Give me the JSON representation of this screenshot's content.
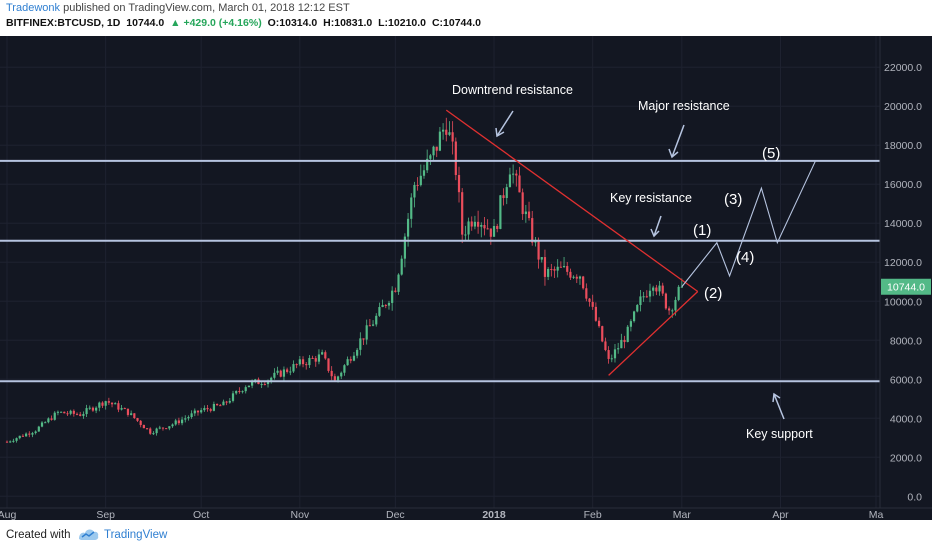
{
  "header": {
    "author": "Tradewonk",
    "published": "published on TradingView.com, March 01, 2018 12:12 EST",
    "symbol": "BITFINEX:BTCUSD, 1D",
    "last": "10744.0",
    "change": "▲ +429.0 (+4.16%)",
    "open": "O:10314.0",
    "high": "H:10831.0",
    "low": "L:10210.0",
    "close": "C:10744.0"
  },
  "footer": {
    "created_with": "Created with",
    "brand": "TradingView"
  },
  "colors": {
    "background": "#131722",
    "bull": "#53b987",
    "bear": "#eb4d5c",
    "level_line": "#b6c4e0",
    "triangle": "#e03030",
    "annotation": "#ffffff",
    "price_badge": "#53b987"
  },
  "chart_data": {
    "type": "candlestick",
    "y_axis": {
      "range": [
        -600,
        23600
      ],
      "ticks": [
        "0.0",
        "2000.0",
        "4000.0",
        "6000.0",
        "8000.0",
        "10000.0",
        "12000.0",
        "14000.0",
        "16000.0",
        "18000.0",
        "20000.0",
        "22000.0"
      ],
      "tick_values": [
        0,
        2000,
        4000,
        6000,
        8000,
        10000,
        12000,
        14000,
        16000,
        18000,
        20000,
        22000
      ]
    },
    "x_axis": {
      "labels": [
        "Aug",
        "Sep",
        "Oct",
        "Nov",
        "Dec",
        "2018",
        "Feb",
        "Mar",
        "Apr",
        "Ma"
      ],
      "label_dates": [
        "2017-08-01",
        "2017-09-01",
        "2017-10-01",
        "2017-11-01",
        "2017-12-01",
        "2018-01-01",
        "2018-02-01",
        "2018-03-01",
        "2018-04-01",
        "2018-05-01"
      ]
    },
    "last_price_label": "10744.0",
    "price_path": [
      [
        "2017-08-01",
        2800
      ],
      [
        "2017-08-10",
        3400
      ],
      [
        "2017-08-17",
        4300
      ],
      [
        "2017-08-24",
        4200
      ],
      [
        "2017-09-01",
        4900
      ],
      [
        "2017-09-08",
        4300
      ],
      [
        "2017-09-15",
        3300
      ],
      [
        "2017-09-22",
        3700
      ],
      [
        "2017-10-01",
        4400
      ],
      [
        "2017-10-08",
        4700
      ],
      [
        "2017-10-15",
        5700
      ],
      [
        "2017-10-22",
        6000
      ],
      [
        "2017-11-01",
        6800
      ],
      [
        "2017-11-08",
        7200
      ],
      [
        "2017-11-12",
        5900
      ],
      [
        "2017-11-20",
        8000
      ],
      [
        "2017-11-26",
        9400
      ],
      [
        "2017-12-01",
        10800
      ],
      [
        "2017-12-07",
        16000
      ],
      [
        "2017-12-12",
        17200
      ],
      [
        "2017-12-17",
        19200
      ],
      [
        "2017-12-20",
        16800
      ],
      [
        "2017-12-22",
        13500
      ],
      [
        "2017-12-26",
        14500
      ],
      [
        "2018-01-01",
        13500
      ],
      [
        "2018-01-06",
        17000
      ],
      [
        "2018-01-12",
        13800
      ],
      [
        "2018-01-17",
        11400
      ],
      [
        "2018-01-22",
        11600
      ],
      [
        "2018-01-28",
        11400
      ],
      [
        "2018-02-02",
        9000
      ],
      [
        "2018-02-06",
        6900
      ],
      [
        "2018-02-12",
        8400
      ],
      [
        "2018-02-16",
        10000
      ],
      [
        "2018-02-20",
        11100
      ],
      [
        "2018-02-25",
        9600
      ],
      [
        "2018-03-01",
        10744
      ]
    ],
    "horizontal_levels": [
      {
        "price": 17200,
        "label": "Major resistance"
      },
      {
        "price": 13100,
        "label": "Key resistance"
      },
      {
        "price": 5900,
        "label": "Key support"
      }
    ],
    "trend_lines": [
      {
        "from": [
          "2017-12-17",
          19800
        ],
        "to": [
          "2018-03-06",
          10500
        ]
      },
      {
        "from": [
          "2018-02-06",
          6200
        ],
        "to": [
          "2018-03-06",
          10500
        ]
      }
    ],
    "projection_path": [
      [
        "2018-03-01",
        10744
      ],
      [
        "2018-03-12",
        13000
      ],
      [
        "2018-03-16",
        11300
      ],
      [
        "2018-03-26",
        15800
      ],
      [
        "2018-03-31",
        13000
      ],
      [
        "2018-04-12",
        17200
      ]
    ]
  },
  "annotations": {
    "downtrend": "Downtrend resistance",
    "major": "Major resistance",
    "key_res": "Key resistance",
    "key_sup": "Key support",
    "w1": "(1)",
    "w2": "(2)",
    "w3": "(3)",
    "w4": "(4)",
    "w5": "(5)"
  }
}
